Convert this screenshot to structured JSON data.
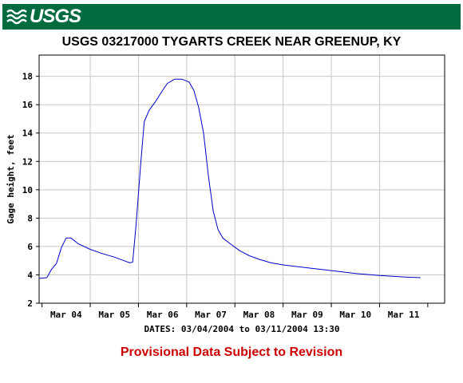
{
  "header": {
    "logo_text": "USGS",
    "banner_color": "#006b3f"
  },
  "chart_data": {
    "type": "line",
    "title": "USGS 03217000 TYGARTS CREEK NEAR GREENUP, KY",
    "ylabel": "Gage height, feet",
    "xlabel": "DATES: 03/04/2004 to 03/11/2004 13:30",
    "ylim": [
      2,
      19.5
    ],
    "y_ticks": [
      "2",
      "4",
      "6",
      "8",
      "10",
      "12",
      "14",
      "16",
      "18"
    ],
    "x_ticks": [
      "Mar 04",
      "Mar 05",
      "Mar 06",
      "Mar 07",
      "Mar 08",
      "Mar 09",
      "Mar 10",
      "Mar 11"
    ],
    "x_unit": "days since 03/04/2004 00:00",
    "grid": true,
    "line_color": "#0000cc",
    "series": [
      {
        "values": [
          [
            -0.55,
            3.75
          ],
          [
            -0.4,
            3.8
          ],
          [
            -0.3,
            4.4
          ],
          [
            -0.2,
            4.8
          ],
          [
            -0.1,
            5.9
          ],
          [
            0.0,
            6.6
          ],
          [
            0.1,
            6.6
          ],
          [
            0.25,
            6.2
          ],
          [
            0.5,
            5.8
          ],
          [
            0.75,
            5.5
          ],
          [
            1.0,
            5.25
          ],
          [
            1.2,
            5.0
          ],
          [
            1.32,
            4.85
          ],
          [
            1.38,
            4.9
          ],
          [
            1.45,
            7.5
          ],
          [
            1.55,
            12.0
          ],
          [
            1.62,
            14.8
          ],
          [
            1.72,
            15.6
          ],
          [
            1.85,
            16.2
          ],
          [
            2.0,
            17.0
          ],
          [
            2.1,
            17.5
          ],
          [
            2.25,
            17.8
          ],
          [
            2.4,
            17.8
          ],
          [
            2.55,
            17.6
          ],
          [
            2.65,
            17.0
          ],
          [
            2.75,
            15.8
          ],
          [
            2.85,
            14.0
          ],
          [
            2.95,
            11.0
          ],
          [
            3.05,
            8.5
          ],
          [
            3.15,
            7.2
          ],
          [
            3.25,
            6.6
          ],
          [
            3.4,
            6.2
          ],
          [
            3.6,
            5.7
          ],
          [
            3.8,
            5.35
          ],
          [
            4.0,
            5.1
          ],
          [
            4.25,
            4.85
          ],
          [
            4.5,
            4.7
          ],
          [
            5.0,
            4.5
          ],
          [
            5.5,
            4.3
          ],
          [
            6.0,
            4.1
          ],
          [
            6.5,
            3.95
          ],
          [
            7.0,
            3.85
          ],
          [
            7.35,
            3.8
          ]
        ]
      }
    ]
  },
  "footer": {
    "provisional_text": "Provisional Data Subject to Revision",
    "provisional_color": "#cc0000"
  }
}
